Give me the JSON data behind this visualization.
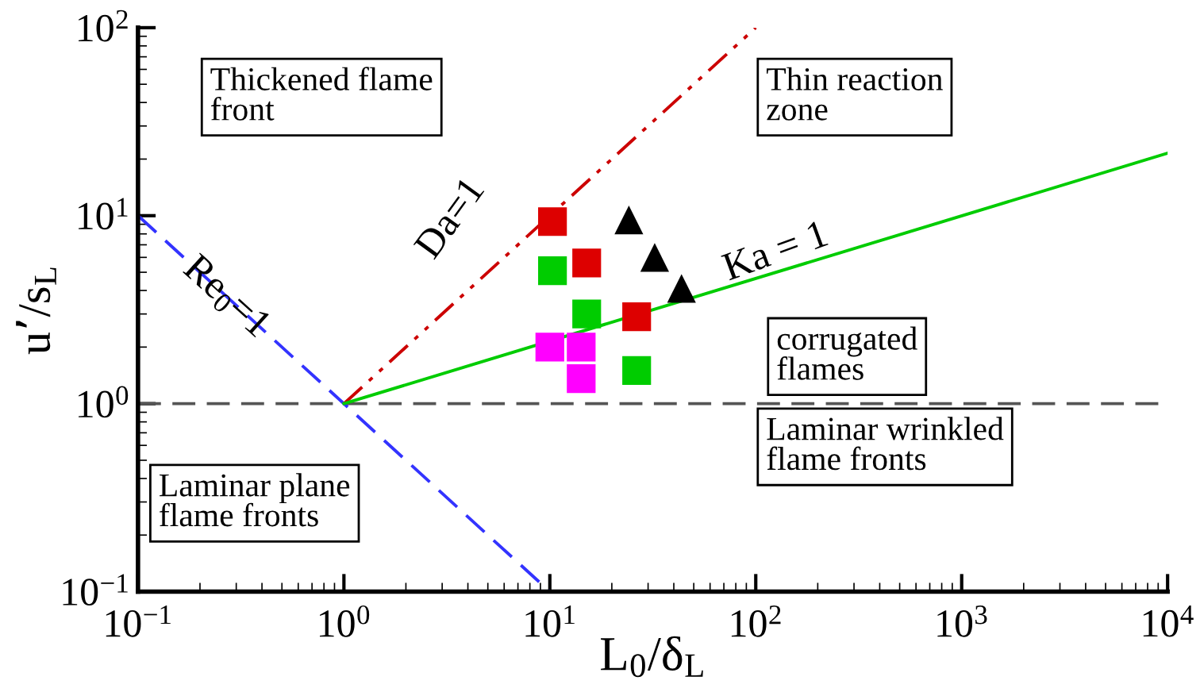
{
  "chart_data": {
    "type": "scatter",
    "xlabel": "L$_{0}$/δ$_{L}$",
    "ylabel": "u’/s$_{L}$",
    "log": "xy",
    "grid": false,
    "xlim": [
      0.1,
      10000
    ],
    "ylim": [
      0.1,
      100
    ],
    "xticks": [
      {
        "value": 0.1,
        "label": "10$^{−1}$"
      },
      {
        "value": 1,
        "label": "10$^{0}$"
      },
      {
        "value": 10,
        "label": "10$^{1}$"
      },
      {
        "value": 100,
        "label": "10$^{2}$"
      },
      {
        "value": 1000,
        "label": "10$^{3}$"
      },
      {
        "value": 10000,
        "label": "10$^{4}$"
      }
    ],
    "yticks": [
      {
        "value": 0.1,
        "label": "10$^{−1}$"
      },
      {
        "value": 1,
        "label": "10$^{0}$"
      },
      {
        "value": 10,
        "label": "10$^{1}$"
      },
      {
        "value": 100,
        "label": "10$^{2}$"
      }
    ],
    "series": [
      {
        "type": "line",
        "color": "#3333ff",
        "line_style": "dashed",
        "x": [
          0.1,
          10
        ],
        "values": [
          10,
          0.1
        ]
      },
      {
        "type": "line",
        "color": "#cc0000",
        "line_style": "dashdot",
        "x": [
          1,
          100
        ],
        "values": [
          1,
          100
        ]
      },
      {
        "type": "line",
        "color": "#00cc00",
        "line_style": "solid",
        "x": [
          1,
          10000
        ],
        "values": [
          1,
          21.5
        ]
      },
      {
        "marker": "square",
        "color": "#dd0000",
        "x": [
          10.3,
          15.1,
          26.4
        ],
        "values": [
          9.3,
          5.6,
          2.9
        ]
      },
      {
        "marker": "square",
        "color": "#00cc00",
        "x": [
          10.3,
          15.1,
          26.4
        ],
        "values": [
          5.1,
          3.0,
          1.5
        ]
      },
      {
        "marker": "square",
        "color": "#ff00ff",
        "x": [
          10,
          14.2,
          14.2
        ],
        "values": [
          2.0,
          2.0,
          1.36
        ]
      },
      {
        "marker": "triangle",
        "color": "#000000",
        "x": [
          24.2,
          32.3,
          43.6
        ],
        "values": [
          9.5,
          6.0,
          4.1
        ]
      }
    ],
    "ref_lines": [
      {
        "axis": "y",
        "value": 1,
        "color": "#555555",
        "line_style": "dashed"
      }
    ],
    "annotations": [
      "Re$_{0}$=1",
      "Da=1",
      "Ka = 1",
      "Thickened flame\nfront",
      "Thin reaction\nzone",
      "corrugated\nflames",
      "Laminar plane\nflame fronts",
      "Laminar wrinkled\nflame fronts"
    ]
  }
}
